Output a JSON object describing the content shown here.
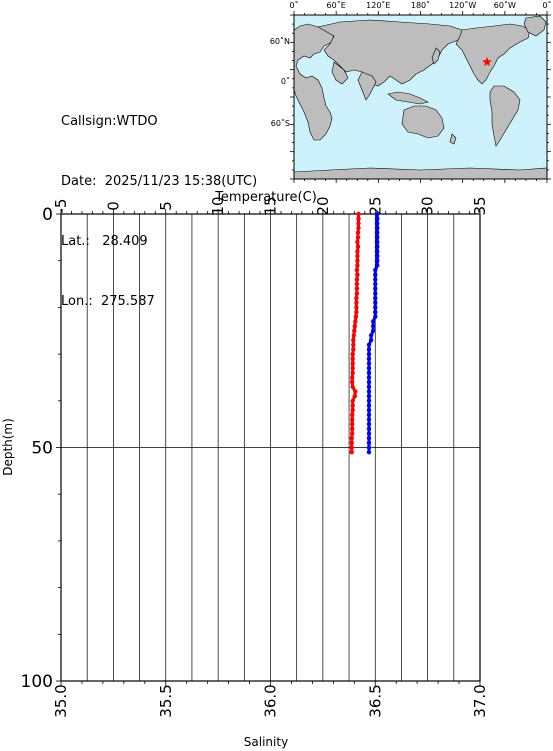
{
  "info": {
    "callsign": "Callsign:WTDO",
    "date": "Date:  2025/11/23 15:38(UTC)",
    "lat": "Lat.:   28.409",
    "lon": "Lon.:  275.587"
  },
  "map": {
    "top_labels": [
      "0˚",
      "60˚E",
      "120˚E",
      "180˚",
      "120˚W",
      "60˚W",
      "0˚"
    ],
    "left_labels": [
      "60˚N",
      "0˚",
      "60˚S"
    ],
    "ocean_color": "#cef2fb",
    "land_color": "#bdbdbd",
    "marker_color": "#ff0000",
    "marker_icon": "star"
  },
  "chart_data": {
    "type": "line",
    "xlabel_top": "Temperature(C)",
    "xlabel_bottom": "Salinity",
    "ylabel": "Depth(m)",
    "temperature_axis": {
      "range": [
        -5,
        35
      ],
      "ticks": [
        -5,
        0,
        5,
        10,
        15,
        20,
        25,
        30,
        35
      ]
    },
    "salinity_axis": {
      "range": [
        35.0,
        37.0
      ],
      "ticks": [
        "35.0",
        "35.5",
        "36.0",
        "36.5",
        "37.0"
      ]
    },
    "depth_axis": {
      "range": [
        0,
        100
      ],
      "ticks": [
        0,
        50,
        100
      ],
      "inverted": true
    },
    "grid": true,
    "series": [
      {
        "color": "#ff0000",
        "axis": "temperature",
        "points": [
          [
            0,
            23.4
          ],
          [
            1,
            23.4
          ],
          [
            2,
            23.4
          ],
          [
            3,
            23.4
          ],
          [
            4,
            23.35
          ],
          [
            5,
            23.35
          ],
          [
            6,
            23.3
          ],
          [
            7,
            23.35
          ],
          [
            8,
            23.3
          ],
          [
            9,
            23.3
          ],
          [
            10,
            23.3
          ],
          [
            11,
            23.3
          ],
          [
            12,
            23.25
          ],
          [
            13,
            23.3
          ],
          [
            14,
            23.25
          ],
          [
            15,
            23.25
          ],
          [
            16,
            23.25
          ],
          [
            17,
            23.25
          ],
          [
            18,
            23.2
          ],
          [
            19,
            23.2
          ],
          [
            20,
            23.2
          ],
          [
            21,
            23.2
          ],
          [
            22,
            23.15
          ],
          [
            23,
            23.1
          ],
          [
            24,
            23.05
          ],
          [
            25,
            23.0
          ],
          [
            26,
            22.95
          ],
          [
            27,
            22.9
          ],
          [
            28,
            22.9
          ],
          [
            29,
            22.9
          ],
          [
            30,
            22.85
          ],
          [
            31,
            22.85
          ],
          [
            32,
            22.85
          ],
          [
            33,
            22.85
          ],
          [
            34,
            22.85
          ],
          [
            35,
            22.8
          ],
          [
            36,
            22.8
          ],
          [
            37,
            22.85
          ],
          [
            38,
            23.1
          ],
          [
            39,
            23.05
          ],
          [
            40,
            22.85
          ],
          [
            41,
            22.85
          ],
          [
            42,
            22.85
          ],
          [
            43,
            22.8
          ],
          [
            44,
            22.8
          ],
          [
            45,
            22.8
          ],
          [
            46,
            22.8
          ],
          [
            47,
            22.8
          ],
          [
            48,
            22.75
          ],
          [
            49,
            22.75
          ],
          [
            50,
            22.75
          ],
          [
            51,
            22.75
          ]
        ]
      },
      {
        "color": "#0000ff",
        "axis": "salinity",
        "points": [
          [
            0,
            36.51
          ],
          [
            1,
            36.51
          ],
          [
            2,
            36.51
          ],
          [
            3,
            36.51
          ],
          [
            4,
            36.51
          ],
          [
            5,
            36.51
          ],
          [
            6,
            36.51
          ],
          [
            7,
            36.51
          ],
          [
            8,
            36.51
          ],
          [
            9,
            36.51
          ],
          [
            10,
            36.51
          ],
          [
            11,
            36.51
          ],
          [
            12,
            36.5
          ],
          [
            13,
            36.5
          ],
          [
            14,
            36.5
          ],
          [
            15,
            36.5
          ],
          [
            16,
            36.5
          ],
          [
            17,
            36.5
          ],
          [
            18,
            36.5
          ],
          [
            19,
            36.5
          ],
          [
            20,
            36.5
          ],
          [
            21,
            36.5
          ],
          [
            22,
            36.5
          ],
          [
            23,
            36.49
          ],
          [
            24,
            36.49
          ],
          [
            25,
            36.49
          ],
          [
            26,
            36.48
          ],
          [
            27,
            36.48
          ],
          [
            28,
            36.47
          ],
          [
            29,
            36.47
          ],
          [
            30,
            36.47
          ],
          [
            31,
            36.47
          ],
          [
            32,
            36.47
          ],
          [
            33,
            36.47
          ],
          [
            34,
            36.47
          ],
          [
            35,
            36.47
          ],
          [
            36,
            36.47
          ],
          [
            37,
            36.47
          ],
          [
            38,
            36.47
          ],
          [
            39,
            36.47
          ],
          [
            40,
            36.47
          ],
          [
            41,
            36.47
          ],
          [
            42,
            36.47
          ],
          [
            43,
            36.47
          ],
          [
            44,
            36.47
          ],
          [
            45,
            36.47
          ],
          [
            46,
            36.47
          ],
          [
            47,
            36.47
          ],
          [
            48,
            36.47
          ],
          [
            49,
            36.47
          ],
          [
            50,
            36.47
          ],
          [
            51,
            36.47
          ]
        ]
      }
    ]
  }
}
